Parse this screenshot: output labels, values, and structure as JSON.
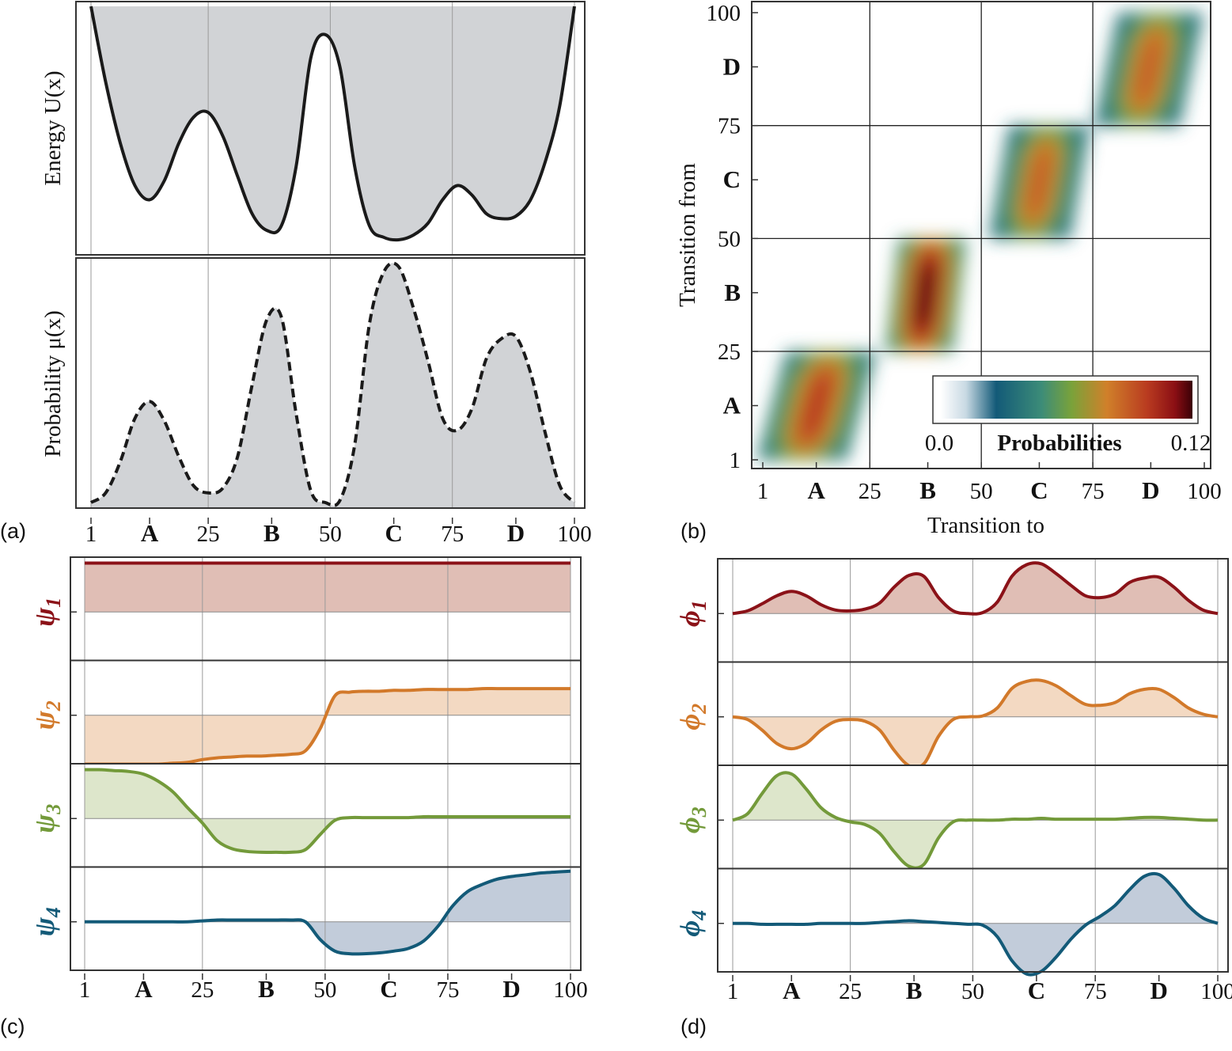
{
  "colors": {
    "fill_gray": "#d1d3d6",
    "line_black": "#1a1a1a",
    "red": "#8b1218",
    "orange": "#d2792a",
    "green": "#739a3a",
    "blue": "#135a78",
    "red_fill": "#e0beb5",
    "orange_fill": "#f3d9c2",
    "green_fill": "#dde6cb",
    "blue_fill": "#c2ccda"
  },
  "panel_labels": {
    "a": "(a)",
    "b": "(b)",
    "c": "(c)",
    "d": "(d)"
  },
  "x_ticks": [
    {
      "v": 1,
      "label": "1",
      "kind": "num"
    },
    {
      "v": 13,
      "label": "A",
      "kind": "letter"
    },
    {
      "v": 25,
      "label": "25",
      "kind": "num"
    },
    {
      "v": 38,
      "label": "B",
      "kind": "letter"
    },
    {
      "v": 50,
      "label": "50",
      "kind": "num"
    },
    {
      "v": 63,
      "label": "C",
      "kind": "letter"
    },
    {
      "v": 75,
      "label": "75",
      "kind": "num"
    },
    {
      "v": 88,
      "label": "D",
      "kind": "letter"
    },
    {
      "v": 100,
      "label": "100",
      "kind": "num"
    }
  ],
  "chart_data": [
    {
      "id": "energy",
      "type": "area",
      "ylabel": "Energy   U(x)",
      "xlim": [
        1,
        100
      ],
      "ylim": [
        0,
        1
      ],
      "x": [
        1,
        4,
        7,
        10,
        13,
        16,
        19,
        22,
        25,
        28,
        31,
        34,
        37,
        40,
        43,
        46,
        49,
        52,
        55,
        58,
        61,
        64,
        67,
        70,
        73,
        76,
        79,
        82,
        85,
        88,
        91,
        94,
        97,
        100
      ],
      "y": [
        1.0,
        0.68,
        0.42,
        0.24,
        0.18,
        0.26,
        0.42,
        0.53,
        0.55,
        0.45,
        0.28,
        0.12,
        0.05,
        0.07,
        0.32,
        0.78,
        0.88,
        0.74,
        0.32,
        0.07,
        0.02,
        0.01,
        0.03,
        0.08,
        0.18,
        0.24,
        0.2,
        0.12,
        0.1,
        0.11,
        0.18,
        0.34,
        0.58,
        1.0
      ]
    },
    {
      "id": "probability",
      "type": "area",
      "ylabel": "Probability   μ(x)",
      "xlim": [
        1,
        100
      ],
      "ylim": [
        0,
        1
      ],
      "x": [
        1,
        4,
        7,
        10,
        13,
        16,
        19,
        22,
        25,
        28,
        31,
        34,
        37,
        40,
        43,
        46,
        49,
        52,
        55,
        58,
        61,
        64,
        67,
        70,
        73,
        76,
        79,
        82,
        85,
        88,
        91,
        94,
        97,
        100
      ],
      "y": [
        0.01,
        0.05,
        0.18,
        0.36,
        0.43,
        0.35,
        0.2,
        0.08,
        0.05,
        0.07,
        0.2,
        0.5,
        0.77,
        0.78,
        0.38,
        0.06,
        0.01,
        0.02,
        0.25,
        0.75,
        0.97,
        0.99,
        0.82,
        0.6,
        0.36,
        0.31,
        0.4,
        0.61,
        0.69,
        0.7,
        0.55,
        0.3,
        0.08,
        0.01
      ]
    },
    {
      "id": "transition",
      "type": "heatmap",
      "xlabel": "Transition   to",
      "ylabel": "Transition   from",
      "xlim": [
        1,
        100
      ],
      "ylim": [
        1,
        100
      ],
      "blocks": [
        {
          "from": [
            1,
            25
          ],
          "to": [
            3,
            23
          ],
          "peak": 0.1,
          "shift": 0.33
        },
        {
          "from": [
            25,
            50
          ],
          "to": [
            30,
            45
          ],
          "peak": 0.12,
          "shift": 0.2
        },
        {
          "from": [
            50,
            75
          ],
          "to": [
            54,
            72
          ],
          "peak": 0.09,
          "shift": 0.25
        },
        {
          "from": [
            75,
            100
          ],
          "to": [
            78,
            97
          ],
          "peak": 0.09,
          "shift": 0.28
        }
      ],
      "colorbar": {
        "label": "Probabilities",
        "min_label": "0.0",
        "max_label": "0.12",
        "min": 0,
        "max": 0.12
      }
    },
    {
      "id": "psi",
      "type": "line",
      "xlim": [
        1,
        100
      ],
      "series": [
        {
          "label": "ψ",
          "sub": "1",
          "color_key": "red",
          "y": [
            0.55,
            0.55,
            0.55,
            0.55,
            0.55,
            0.55,
            0.55,
            0.55,
            0.55,
            0.55,
            0.55,
            0.55,
            0.55,
            0.55,
            0.55,
            0.55,
            0.55,
            0.55,
            0.55,
            0.55,
            0.55,
            0.55,
            0.55,
            0.55,
            0.55,
            0.55,
            0.55,
            0.55,
            0.55,
            0.55,
            0.55,
            0.55,
            0.55,
            0.55
          ]
        },
        {
          "label": "ψ",
          "sub": "2",
          "color_key": "orange",
          "y": [
            -0.55,
            -0.55,
            -0.55,
            -0.55,
            -0.55,
            -0.55,
            -0.54,
            -0.53,
            -0.5,
            -0.48,
            -0.47,
            -0.46,
            -0.46,
            -0.45,
            -0.44,
            -0.4,
            -0.15,
            0.22,
            0.26,
            0.27,
            0.27,
            0.28,
            0.28,
            0.29,
            0.29,
            0.29,
            0.29,
            0.3,
            0.3,
            0.3,
            0.3,
            0.3,
            0.3,
            0.3
          ]
        },
        {
          "label": "ψ",
          "sub": "3",
          "color_key": "green",
          "y": [
            0.55,
            0.55,
            0.54,
            0.53,
            0.5,
            0.42,
            0.3,
            0.12,
            -0.05,
            -0.25,
            -0.34,
            -0.37,
            -0.38,
            -0.38,
            -0.38,
            -0.35,
            -0.18,
            -0.02,
            0.01,
            0.01,
            0.01,
            0.01,
            0.01,
            0.02,
            0.02,
            0.02,
            0.02,
            0.02,
            0.02,
            0.02,
            0.02,
            0.02,
            0.02,
            0.02
          ]
        },
        {
          "label": "ψ",
          "sub": "4",
          "color_key": "blue",
          "y": [
            0.0,
            0.0,
            0.0,
            0.0,
            0.0,
            0.0,
            0.0,
            0.0,
            0.01,
            0.02,
            0.02,
            0.02,
            0.02,
            0.02,
            0.02,
            0.0,
            -0.2,
            -0.33,
            -0.36,
            -0.36,
            -0.35,
            -0.33,
            -0.3,
            -0.22,
            -0.05,
            0.18,
            0.34,
            0.42,
            0.48,
            0.51,
            0.53,
            0.55,
            0.56,
            0.57
          ]
        }
      ]
    },
    {
      "id": "phi",
      "type": "line",
      "xlim": [
        1,
        100
      ],
      "series": [
        {
          "label": "ϕ",
          "sub": "1",
          "color_key": "red",
          "y": [
            0.0,
            0.03,
            0.11,
            0.2,
            0.25,
            0.2,
            0.1,
            0.04,
            0.03,
            0.05,
            0.12,
            0.3,
            0.43,
            0.42,
            0.18,
            0.03,
            0.0,
            0.01,
            0.13,
            0.42,
            0.55,
            0.56,
            0.45,
            0.32,
            0.2,
            0.18,
            0.22,
            0.35,
            0.4,
            0.41,
            0.3,
            0.15,
            0.04,
            0.0
          ]
        },
        {
          "label": "ϕ",
          "sub": "2",
          "color_key": "orange",
          "y": [
            0.0,
            -0.03,
            -0.15,
            -0.3,
            -0.36,
            -0.3,
            -0.15,
            -0.05,
            -0.03,
            -0.05,
            -0.15,
            -0.38,
            -0.55,
            -0.53,
            -0.22,
            -0.03,
            0.0,
            0.01,
            0.1,
            0.32,
            0.4,
            0.41,
            0.35,
            0.24,
            0.14,
            0.13,
            0.16,
            0.26,
            0.31,
            0.31,
            0.22,
            0.1,
            0.03,
            0.0
          ]
        },
        {
          "label": "ϕ",
          "sub": "3",
          "color_key": "green",
          "y": [
            0.0,
            0.07,
            0.3,
            0.5,
            0.52,
            0.35,
            0.14,
            0.03,
            -0.02,
            -0.05,
            -0.15,
            -0.36,
            -0.52,
            -0.5,
            -0.2,
            -0.02,
            0.0,
            0.0,
            0.0,
            0.01,
            0.01,
            0.02,
            0.01,
            0.01,
            0.01,
            0.01,
            0.01,
            0.02,
            0.03,
            0.03,
            0.02,
            0.01,
            0.0,
            0.0
          ]
        },
        {
          "label": "ϕ",
          "sub": "4",
          "color_key": "blue",
          "y": [
            0.0,
            0.0,
            -0.01,
            -0.01,
            -0.01,
            -0.01,
            0.0,
            0.0,
            0.0,
            0.0,
            0.01,
            0.02,
            0.03,
            0.02,
            0.01,
            0.0,
            -0.01,
            -0.02,
            -0.15,
            -0.42,
            -0.57,
            -0.54,
            -0.38,
            -0.18,
            -0.02,
            0.08,
            0.2,
            0.38,
            0.53,
            0.55,
            0.4,
            0.2,
            0.06,
            0.0
          ]
        }
      ]
    }
  ]
}
